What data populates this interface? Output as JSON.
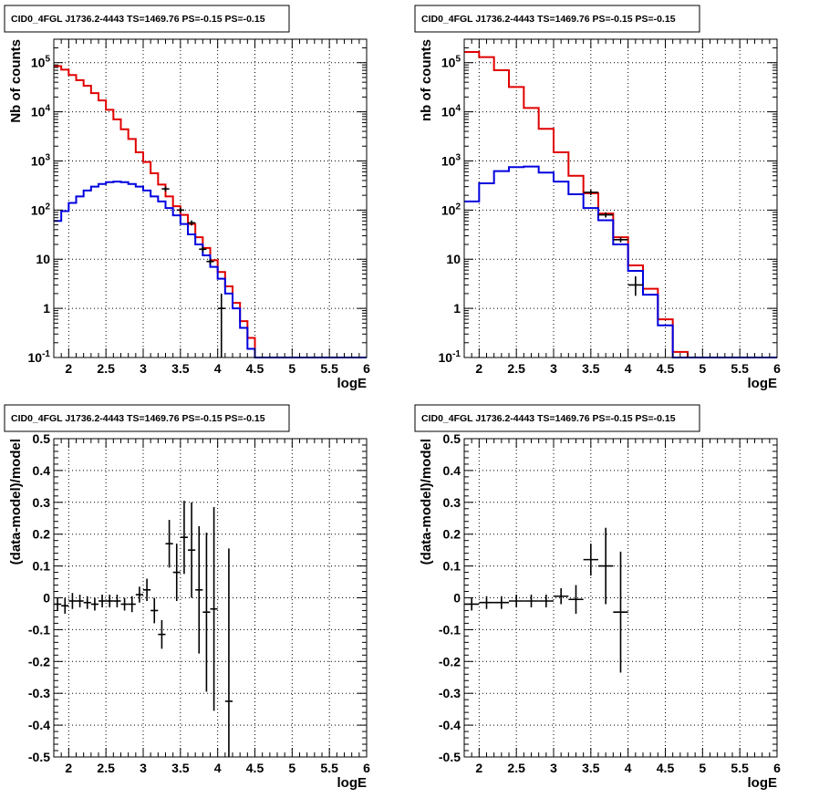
{
  "chart_data": [
    {
      "type": "line",
      "title": "CID0_4FGL J1736.2-4443 TS=1469.76 PS=-0.15 PS=-0.15",
      "xlabel": "logE",
      "ylabel": "Nb of counts",
      "xlim": [
        1.8,
        6.0
      ],
      "ylim": [
        0.1,
        300000
      ],
      "yscale": "log",
      "grid": true,
      "x_ticks": [
        "2",
        "2.5",
        "3",
        "3.5",
        "4",
        "4.5",
        "5",
        "5.5",
        "6"
      ],
      "y_ticks": [
        "10^-1",
        "1",
        "10",
        "10^2",
        "10^3",
        "10^4",
        "10^5"
      ],
      "bin_edges": [
        1.8,
        1.9,
        2.0,
        2.1,
        2.2,
        2.3,
        2.4,
        2.5,
        2.6,
        2.7,
        2.8,
        2.9,
        3.0,
        3.1,
        3.2,
        3.3,
        3.4,
        3.5,
        3.6,
        3.7,
        3.8,
        3.9,
        4.0,
        4.1,
        4.2,
        4.3,
        4.4,
        4.5,
        4.6,
        6.0
      ],
      "series": [
        {
          "color": "#e00000",
          "values": [
            85000,
            72000,
            56000,
            44000,
            34000,
            24000,
            17000,
            11000,
            7000,
            4400,
            2800,
            1500,
            950,
            560,
            330,
            190,
            120,
            80,
            52,
            28,
            17,
            9.5,
            5.5,
            2.8,
            1.3,
            0.55,
            0.25,
            0.1,
            0.1
          ]
        },
        {
          "color": "#0000e0",
          "values": [
            60,
            95,
            140,
            190,
            250,
            300,
            340,
            370,
            380,
            370,
            340,
            300,
            250,
            190,
            150,
            110,
            78,
            52,
            32,
            20,
            12,
            7,
            4,
            2,
            1,
            0.4,
            0.15,
            0.1,
            0.1
          ]
        }
      ],
      "data_points": [
        {
          "x": 3.3,
          "y": 270,
          "xerr": 0.05
        },
        {
          "x": 3.5,
          "y": 100,
          "xerr": 0.05
        },
        {
          "x": 3.65,
          "y": 55,
          "xerr": 0.05
        },
        {
          "x": 3.8,
          "y": 16,
          "xerr": 0.05
        },
        {
          "x": 3.9,
          "y": 9,
          "xerr": 0.05
        },
        {
          "x": 4.05,
          "y": 1.0,
          "xerr": 0.05,
          "ylo": 0.1,
          "yhi": 2.0
        }
      ]
    },
    {
      "type": "line",
      "title": "CID0_4FGL J1736.2-4443 TS=1469.76 PS=-0.15 PS=-0.15",
      "xlabel": "logE",
      "ylabel": "nb of counts",
      "xlim": [
        1.8,
        6.0
      ],
      "ylim": [
        0.1,
        300000
      ],
      "yscale": "log",
      "grid": true,
      "x_ticks": [
        "2",
        "2.5",
        "3",
        "3.5",
        "4",
        "4.5",
        "5",
        "5.5",
        "6"
      ],
      "y_ticks": [
        "10^-1",
        "1",
        "10",
        "10^2",
        "10^3",
        "10^4",
        "10^5"
      ],
      "bin_edges": [
        1.8,
        2.0,
        2.2,
        2.4,
        2.6,
        2.8,
        3.0,
        3.2,
        3.4,
        3.6,
        3.8,
        4.0,
        4.2,
        4.4,
        4.6,
        4.8,
        6.0
      ],
      "series": [
        {
          "color": "#e00000",
          "values": [
            165000,
            130000,
            70000,
            32000,
            12000,
            4500,
            1500,
            500,
            220,
            85,
            28,
            7.5,
            2.5,
            0.6,
            0.13,
            0.1
          ]
        },
        {
          "color": "#0000e0",
          "values": [
            150,
            350,
            620,
            750,
            770,
            580,
            380,
            210,
            110,
            62,
            20,
            5.8,
            1.9,
            0.45,
            0.1,
            0.1
          ]
        }
      ],
      "data_points": [
        {
          "x": 3.5,
          "y": 230,
          "xerr": 0.1
        },
        {
          "x": 3.7,
          "y": 80,
          "xerr": 0.1
        },
        {
          "x": 3.9,
          "y": 25,
          "xerr": 0.1
        },
        {
          "x": 4.1,
          "y": 3,
          "xerr": 0.1,
          "ylo": 1.8,
          "yhi": 4.5
        }
      ]
    },
    {
      "type": "scatter",
      "title": "CID0_4FGL J1736.2-4443 TS=1469.76 PS=-0.15 PS=-0.15",
      "xlabel": "logE",
      "ylabel": "(data-model)/model",
      "xlim": [
        1.8,
        6.0
      ],
      "ylim": [
        -0.5,
        0.5
      ],
      "grid": true,
      "x_ticks": [
        "2",
        "2.5",
        "3",
        "3.5",
        "4",
        "4.5",
        "5",
        "5.5",
        "6"
      ],
      "y_ticks": [
        "-0.5",
        "-0.4",
        "-0.3",
        "-0.2",
        "-0.1",
        "0",
        "0.1",
        "0.2",
        "0.3",
        "0.4",
        "0.5"
      ],
      "points": [
        {
          "x": 1.85,
          "y": -0.02,
          "xerr": 0.05,
          "yerr": 0.02
        },
        {
          "x": 1.95,
          "y": -0.025,
          "xerr": 0.05,
          "yerr": 0.025
        },
        {
          "x": 2.05,
          "y": -0.01,
          "xerr": 0.05,
          "yerr": 0.025
        },
        {
          "x": 2.15,
          "y": -0.01,
          "xerr": 0.05,
          "yerr": 0.02
        },
        {
          "x": 2.25,
          "y": -0.015,
          "xerr": 0.05,
          "yerr": 0.02
        },
        {
          "x": 2.35,
          "y": -0.02,
          "xerr": 0.05,
          "yerr": 0.02
        },
        {
          "x": 2.45,
          "y": -0.01,
          "xerr": 0.05,
          "yerr": 0.02
        },
        {
          "x": 2.55,
          "y": -0.01,
          "xerr": 0.05,
          "yerr": 0.02
        },
        {
          "x": 2.65,
          "y": -0.01,
          "xerr": 0.05,
          "yerr": 0.02
        },
        {
          "x": 2.75,
          "y": -0.02,
          "xerr": 0.05,
          "yerr": 0.02
        },
        {
          "x": 2.85,
          "y": -0.02,
          "xerr": 0.05,
          "yerr": 0.025
        },
        {
          "x": 2.95,
          "y": 0.01,
          "xerr": 0.05,
          "yerr": 0.025
        },
        {
          "x": 3.05,
          "y": 0.025,
          "xerr": 0.05,
          "yerr": 0.035
        },
        {
          "x": 3.15,
          "y": -0.04,
          "xerr": 0.05,
          "yerr": 0.04
        },
        {
          "x": 3.25,
          "y": -0.115,
          "xerr": 0.05,
          "yerr": 0.045
        },
        {
          "x": 3.35,
          "y": 0.17,
          "xerr": 0.05,
          "yerr": 0.075
        },
        {
          "x": 3.45,
          "y": 0.08,
          "xerr": 0.05,
          "yerr": 0.09
        },
        {
          "x": 3.55,
          "y": 0.19,
          "xerr": 0.05,
          "yerr": 0.115
        },
        {
          "x": 3.65,
          "y": 0.15,
          "xerr": 0.05,
          "yerr": 0.15
        },
        {
          "x": 3.75,
          "y": 0.025,
          "xerr": 0.05,
          "yerr": 0.2
        },
        {
          "x": 3.85,
          "y": -0.045,
          "xerr": 0.05,
          "yerr": 0.25
        },
        {
          "x": 3.95,
          "y": -0.035,
          "xerr": 0.05,
          "yerr": 0.32
        },
        {
          "x": 4.15,
          "y": -0.325,
          "xerr": 0.05,
          "yerr": 0.48
        }
      ]
    },
    {
      "type": "scatter",
      "title": "CID0_4FGL J1736.2-4443 TS=1469.76 PS=-0.15 PS=-0.15",
      "xlabel": "logE",
      "ylabel": "(data-model)/model",
      "xlim": [
        1.8,
        6.0
      ],
      "ylim": [
        -0.5,
        0.5
      ],
      "grid": true,
      "x_ticks": [
        "2",
        "2.5",
        "3",
        "3.5",
        "4",
        "4.5",
        "5",
        "5.5",
        "6"
      ],
      "y_ticks": [
        "-0.5",
        "-0.4",
        "-0.3",
        "-0.2",
        "-0.1",
        "0",
        "0.1",
        "0.2",
        "0.3",
        "0.4",
        "0.5"
      ],
      "points": [
        {
          "x": 1.9,
          "y": -0.02,
          "xerr": 0.1,
          "yerr": 0.02
        },
        {
          "x": 2.1,
          "y": -0.015,
          "xerr": 0.1,
          "yerr": 0.02
        },
        {
          "x": 2.3,
          "y": -0.015,
          "xerr": 0.1,
          "yerr": 0.02
        },
        {
          "x": 2.5,
          "y": -0.01,
          "xerr": 0.1,
          "yerr": 0.02
        },
        {
          "x": 2.7,
          "y": -0.01,
          "xerr": 0.1,
          "yerr": 0.02
        },
        {
          "x": 2.9,
          "y": -0.01,
          "xerr": 0.1,
          "yerr": 0.02
        },
        {
          "x": 3.1,
          "y": 0.005,
          "xerr": 0.1,
          "yerr": 0.025
        },
        {
          "x": 3.3,
          "y": -0.005,
          "xerr": 0.1,
          "yerr": 0.045
        },
        {
          "x": 3.5,
          "y": 0.12,
          "xerr": 0.1,
          "yerr": 0.05
        },
        {
          "x": 3.7,
          "y": 0.1,
          "xerr": 0.1,
          "yerr": 0.12
        },
        {
          "x": 3.9,
          "y": -0.045,
          "xerr": 0.1,
          "yerr": 0.19
        }
      ]
    }
  ]
}
